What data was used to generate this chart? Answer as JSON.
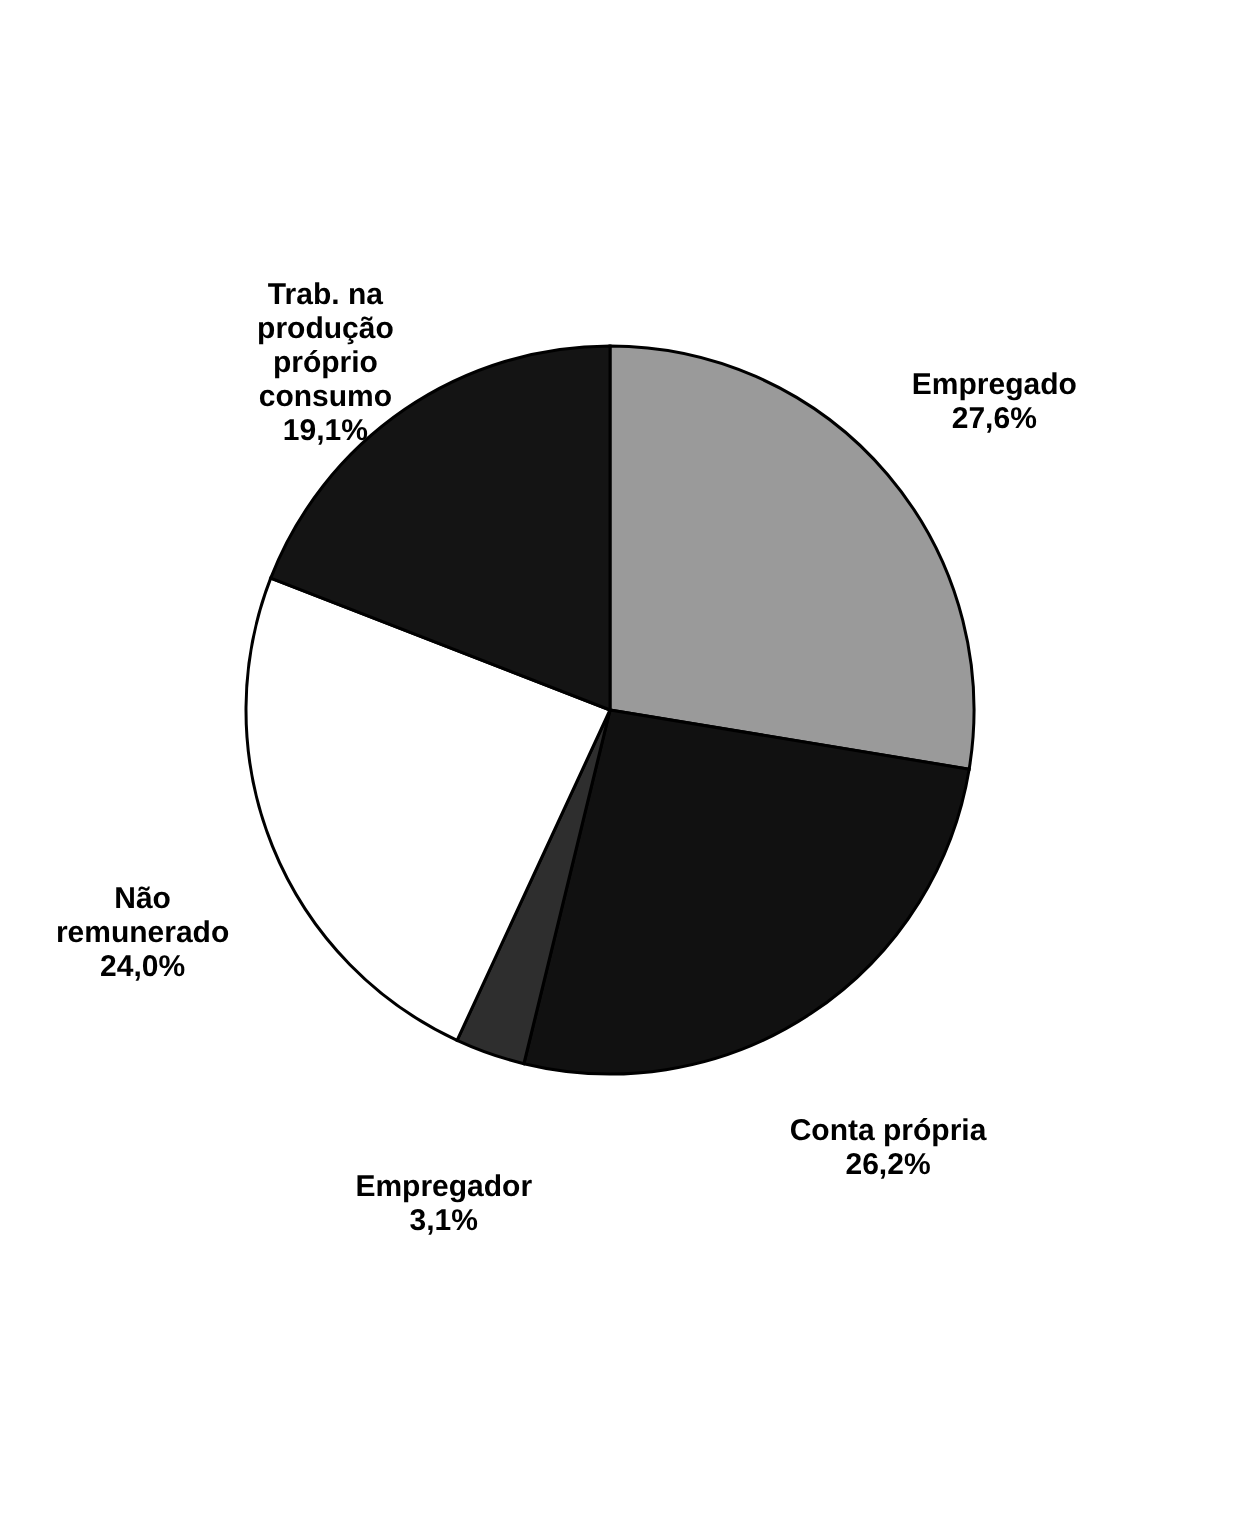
{
  "chart_data": {
    "type": "pie",
    "categories": [
      "Empregado",
      "Conta própria",
      "Empregador",
      "Não remunerado",
      "Trab. na produção próprio consumo"
    ],
    "values": [
      27.6,
      26.2,
      3.1,
      24.0,
      19.1
    ],
    "colors": [
      "#9a9a9a",
      "#111111",
      "#2e2e2e",
      "#ffffff",
      "#141414"
    ],
    "value_labels": [
      "27,6%",
      "26,2%",
      "3,1%",
      "24,0%",
      "19,1%"
    ],
    "legend": false
  }
}
